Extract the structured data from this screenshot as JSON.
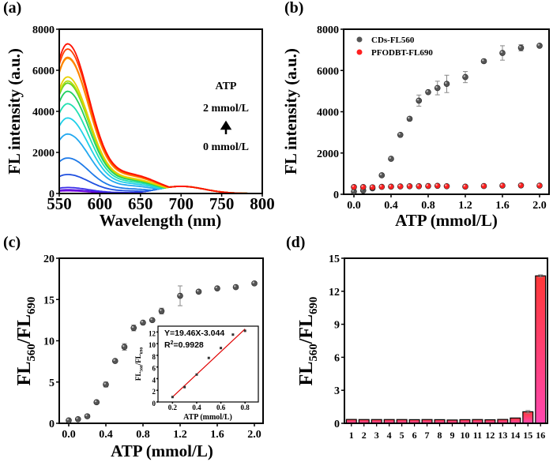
{
  "chart_data": [
    {
      "panel": "(a)",
      "type": "line",
      "xlabel": "Wavelength (nm)",
      "ylabel": "FL intensity (a.u.)",
      "xlim": [
        550,
        800
      ],
      "ylim": [
        0,
        8000
      ],
      "xticks": [
        "550",
        "600",
        "650",
        "700",
        "750",
        "800"
      ],
      "yticks": [
        "0",
        "2000",
        "4000",
        "6000",
        "8000"
      ],
      "annotation": {
        "title": "ATP",
        "top": "2 mmol/L",
        "bottom": "0 mmol/L"
      },
      "peak_wavelength": 560,
      "peak_intensities": [
        130,
        180,
        290,
        920,
        1720,
        2880,
        3660,
        4350,
        4950,
        5350,
        5450,
        5650,
        6550,
        6600,
        7000,
        7250
      ],
      "shoulder_intensity_700": 350,
      "colors": [
        "#7a00d9",
        "#5a10e0",
        "#3a30e8",
        "#2050e0",
        "#1e7ae8",
        "#22a8f0",
        "#20d0e8",
        "#20e0b0",
        "#20d060",
        "#60d020",
        "#b0e010",
        "#e8d000",
        "#ffa000",
        "#ff8000",
        "#ff4000",
        "#ff1000"
      ]
    },
    {
      "panel": "(b)",
      "type": "scatter",
      "xlabel": "ATP (mmol/L)",
      "ylabel": "FL intensity (a.u.)",
      "xlim": [
        -0.1,
        2.05
      ],
      "ylim": [
        0,
        8000
      ],
      "xticks": [
        "0.0",
        "0.4",
        "0.8",
        "1.2",
        "1.6",
        "2.0"
      ],
      "yticks": [
        "0",
        "2000",
        "4000",
        "6000",
        "8000"
      ],
      "x": [
        0,
        0.1,
        0.2,
        0.3,
        0.4,
        0.5,
        0.6,
        0.7,
        0.8,
        0.9,
        1.0,
        1.2,
        1.4,
        1.6,
        1.8,
        2.0
      ],
      "series": [
        {
          "name": "CDs-FL560",
          "color": "#555555",
          "values": [
            130,
            180,
            290,
            920,
            1720,
            2880,
            3660,
            4540,
            4950,
            5150,
            5350,
            5680,
            6450,
            6850,
            7100,
            7200
          ],
          "errors": [
            0,
            0,
            0,
            0,
            0,
            0,
            0,
            270,
            0,
            330,
            420,
            270,
            0,
            350,
            150,
            0
          ]
        },
        {
          "name": "PFODBT-FL690",
          "color": "#ff2020",
          "values": [
            350,
            350,
            340,
            360,
            370,
            380,
            390,
            390,
            400,
            410,
            390,
            370,
            400,
            420,
            430,
            420
          ],
          "errors": [
            0,
            0,
            0,
            0,
            0,
            0,
            0,
            0,
            0,
            0,
            0,
            0,
            0,
            0,
            0,
            0
          ]
        }
      ],
      "legend": "top-left"
    },
    {
      "panel": "(c)",
      "type": "scatter",
      "xlabel": "ATP (mmol/L)",
      "ylabel": "FL560/FL690",
      "xlim": [
        -0.1,
        2.05
      ],
      "ylim": [
        0,
        20
      ],
      "xticks": [
        "0.0",
        "0.4",
        "0.8",
        "1.2",
        "1.6",
        "2.0"
      ],
      "yticks": [
        "0",
        "5",
        "10",
        "15",
        "20"
      ],
      "x": [
        0,
        0.1,
        0.2,
        0.3,
        0.4,
        0.5,
        0.6,
        0.7,
        0.8,
        0.9,
        1.0,
        1.2,
        1.4,
        1.6,
        1.8,
        2.0
      ],
      "values": [
        0.35,
        0.5,
        0.85,
        2.55,
        4.7,
        7.55,
        9.25,
        11.55,
        12.2,
        12.5,
        13.6,
        15.45,
        15.95,
        16.35,
        16.5,
        16.95
      ],
      "errors": [
        0,
        0,
        0,
        0,
        0.3,
        0,
        0.4,
        0.35,
        0,
        0,
        0.35,
        1.2,
        0,
        0,
        0,
        0
      ],
      "inset": {
        "xlabel": "ATP (mmol/L)",
        "ylabel": "FL560/FL690",
        "xlim": [
          0.08,
          0.91
        ],
        "ylim": [
          0,
          13
        ],
        "xticks": [
          "0.2",
          "0.4",
          "0.6",
          "0.8"
        ],
        "yticks": [
          "0",
          "2",
          "4",
          "6",
          "8",
          "10",
          "12"
        ],
        "x": [
          0.2,
          0.3,
          0.4,
          0.5,
          0.6,
          0.7,
          0.8
        ],
        "values": [
          0.85,
          2.55,
          4.7,
          7.55,
          9.25,
          11.55,
          12.2
        ],
        "fit_label": "Y=19.46X-3.044",
        "r2_label": "R",
        "r2_value": "=0.9928",
        "slope": 19.46,
        "intercept": -3.044,
        "fit_color": "#e00000"
      }
    },
    {
      "panel": "(d)",
      "type": "bar",
      "ylabel": "FL560/FL690",
      "ylim": [
        0,
        15
      ],
      "yticks": [
        "0",
        "3",
        "6",
        "9",
        "12",
        "15"
      ],
      "categories": [
        "1",
        "2",
        "3",
        "4",
        "5",
        "6",
        "7",
        "8",
        "9",
        "10",
        "11",
        "12",
        "13",
        "14",
        "15",
        "16"
      ],
      "values": [
        0.35,
        0.34,
        0.34,
        0.34,
        0.34,
        0.33,
        0.34,
        0.33,
        0.3,
        0.33,
        0.34,
        0.32,
        0.35,
        0.48,
        1.05,
        13.4
      ],
      "errors": [
        0,
        0,
        0,
        0,
        0,
        0,
        0,
        0,
        0,
        0,
        0,
        0,
        0,
        0,
        0.12,
        0.1
      ],
      "gradient": [
        "#ff3838",
        "#ff48b0"
      ]
    }
  ]
}
